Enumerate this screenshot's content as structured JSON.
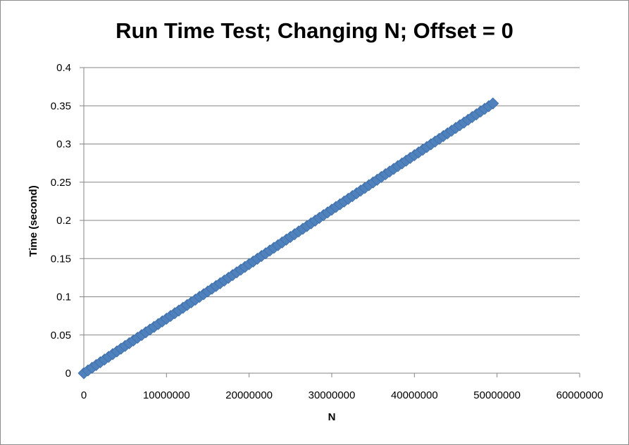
{
  "chart_data": {
    "type": "scatter",
    "title": "Run Time Test; Changing N; Offset = 0",
    "xlabel": "N",
    "ylabel": "Time (second)",
    "xlim": [
      0,
      60000000
    ],
    "ylim": [
      0,
      0.4
    ],
    "x_ticks": [
      "0",
      "10000000",
      "20000000",
      "30000000",
      "40000000",
      "50000000",
      "60000000"
    ],
    "y_ticks": [
      "0",
      "0.05",
      "0.1",
      "0.15",
      "0.2",
      "0.25",
      "0.3",
      "0.35",
      "0.4"
    ],
    "grid": "horizontal",
    "legend": "none",
    "marker": "diamond",
    "marker_color": "#4f81bd",
    "series": [
      {
        "points": [
          [
            0,
            0.0
          ],
          [
            500000,
            0.0036
          ],
          [
            1000000,
            0.0071
          ],
          [
            1500000,
            0.0107
          ],
          [
            2000000,
            0.0143
          ],
          [
            2500000,
            0.0178
          ],
          [
            3000000,
            0.0214
          ],
          [
            3500000,
            0.025
          ],
          [
            4000000,
            0.0285
          ],
          [
            4500000,
            0.0321
          ],
          [
            5000000,
            0.0357
          ],
          [
            5500000,
            0.0392
          ],
          [
            6000000,
            0.0428
          ],
          [
            6500000,
            0.0464
          ],
          [
            7000000,
            0.0499
          ],
          [
            7500000,
            0.0535
          ],
          [
            8000000,
            0.0571
          ],
          [
            8500000,
            0.0606
          ],
          [
            9000000,
            0.0642
          ],
          [
            9500000,
            0.0678
          ],
          [
            10000000,
            0.0713
          ],
          [
            10500000,
            0.0749
          ],
          [
            11000000,
            0.0785
          ],
          [
            11500000,
            0.082
          ],
          [
            12000000,
            0.0856
          ],
          [
            12500000,
            0.0892
          ],
          [
            13000000,
            0.0927
          ],
          [
            13500000,
            0.0963
          ],
          [
            14000000,
            0.0999
          ],
          [
            14500000,
            0.1034
          ],
          [
            15000000,
            0.107
          ],
          [
            15500000,
            0.1106
          ],
          [
            16000000,
            0.1141
          ],
          [
            16500000,
            0.1177
          ],
          [
            17000000,
            0.1213
          ],
          [
            17500000,
            0.1248
          ],
          [
            18000000,
            0.1284
          ],
          [
            18500000,
            0.132
          ],
          [
            19000000,
            0.1355
          ],
          [
            19500000,
            0.1391
          ],
          [
            20000000,
            0.1427
          ],
          [
            20500000,
            0.1462
          ],
          [
            21000000,
            0.1498
          ],
          [
            21500000,
            0.1534
          ],
          [
            22000000,
            0.1569
          ],
          [
            22500000,
            0.1605
          ],
          [
            23000000,
            0.1641
          ],
          [
            23500000,
            0.1676
          ],
          [
            24000000,
            0.1712
          ],
          [
            24500000,
            0.1748
          ],
          [
            25000000,
            0.1783
          ],
          [
            25500000,
            0.1819
          ],
          [
            26000000,
            0.1855
          ],
          [
            26500000,
            0.189
          ],
          [
            27000000,
            0.1926
          ],
          [
            27500000,
            0.1962
          ],
          [
            28000000,
            0.1997
          ],
          [
            28500000,
            0.2033
          ],
          [
            29000000,
            0.2069
          ],
          [
            29500000,
            0.2104
          ],
          [
            30000000,
            0.214
          ],
          [
            30500000,
            0.2176
          ],
          [
            31000000,
            0.2211
          ],
          [
            31500000,
            0.2247
          ],
          [
            32000000,
            0.2283
          ],
          [
            32500000,
            0.2318
          ],
          [
            33000000,
            0.2354
          ],
          [
            33500000,
            0.239
          ],
          [
            34000000,
            0.2425
          ],
          [
            34500000,
            0.2461
          ],
          [
            35000000,
            0.2497
          ],
          [
            35500000,
            0.2532
          ],
          [
            36000000,
            0.2568
          ],
          [
            36500000,
            0.2604
          ],
          [
            37000000,
            0.2639
          ],
          [
            37500000,
            0.2675
          ],
          [
            38000000,
            0.2711
          ],
          [
            38500000,
            0.2746
          ],
          [
            39000000,
            0.2782
          ],
          [
            39500000,
            0.2818
          ],
          [
            40000000,
            0.2853
          ],
          [
            40500000,
            0.2889
          ],
          [
            41000000,
            0.2925
          ],
          [
            41500000,
            0.296
          ],
          [
            42000000,
            0.2996
          ],
          [
            42500000,
            0.3032
          ],
          [
            43000000,
            0.3067
          ],
          [
            43500000,
            0.3103
          ],
          [
            44000000,
            0.3139
          ],
          [
            44500000,
            0.3174
          ],
          [
            45000000,
            0.321
          ],
          [
            45500000,
            0.3246
          ],
          [
            46000000,
            0.3281
          ],
          [
            46500000,
            0.3317
          ],
          [
            47000000,
            0.3353
          ],
          [
            47500000,
            0.3388
          ],
          [
            48000000,
            0.3424
          ],
          [
            48500000,
            0.346
          ],
          [
            49000000,
            0.3495
          ],
          [
            49500000,
            0.3531
          ]
        ]
      }
    ]
  }
}
